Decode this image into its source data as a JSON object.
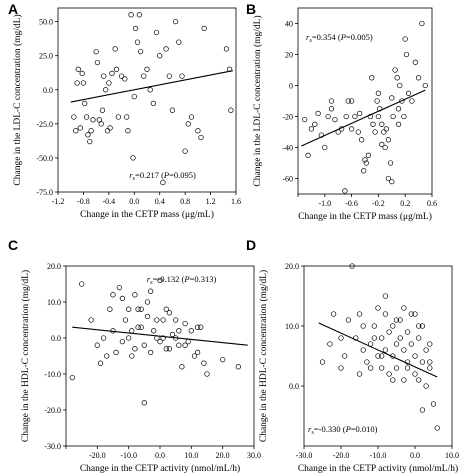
{
  "chart_data": [
    {
      "panel": "A",
      "type": "scatter",
      "xlabel": "Change in the CETP mass (μg/mL)",
      "ylabel": "Change in the LDL-C concentration (mg/dL)",
      "xlim": [
        -1.2,
        1.6
      ],
      "ylim": [
        -75,
        60
      ],
      "xticks": [
        -1.2,
        -0.8,
        -0.4,
        0.0,
        0.4,
        0.8,
        1.2,
        1.6
      ],
      "xtick_labels": [
        "-1.2",
        "-0.8",
        "-0.4",
        "0.0",
        "0.4",
        "0.8",
        "1.2",
        "1.6"
      ],
      "yticks": [
        -75,
        -50,
        -25,
        0,
        25,
        50
      ],
      "ytick_labels": [
        "-75.0",
        "-50.0",
        "-25.0",
        "0.0",
        "25.0",
        "50.0"
      ],
      "stat": {
        "prefix": "r",
        "subscript": "s",
        "text": "=0.217 (",
        "p_label": "P",
        "p_text": "=0.095)",
        "placement": "bottom-center"
      },
      "regression": {
        "x": [
          -1.0,
          1.55
        ],
        "y": [
          -9,
          14
        ]
      },
      "points": [
        [
          -0.95,
          -20
        ],
        [
          -0.92,
          -30
        ],
        [
          -0.9,
          5
        ],
        [
          -0.88,
          15
        ],
        [
          -0.85,
          -28
        ],
        [
          -0.82,
          12
        ],
        [
          -0.8,
          5
        ],
        [
          -0.78,
          -10
        ],
        [
          -0.75,
          -20
        ],
        [
          -0.73,
          -33
        ],
        [
          -0.7,
          -38
        ],
        [
          -0.68,
          -30
        ],
        [
          -0.65,
          -22
        ],
        [
          -0.6,
          28
        ],
        [
          -0.58,
          20
        ],
        [
          -0.55,
          -22
        ],
        [
          -0.52,
          -25
        ],
        [
          -0.5,
          -15
        ],
        [
          -0.48,
          10
        ],
        [
          -0.45,
          0
        ],
        [
          -0.42,
          -30
        ],
        [
          -0.4,
          5
        ],
        [
          -0.38,
          -28
        ],
        [
          -0.35,
          12
        ],
        [
          -0.3,
          30
        ],
        [
          -0.28,
          15
        ],
        [
          -0.25,
          -20
        ],
        [
          -0.2,
          10
        ],
        [
          -0.15,
          8
        ],
        [
          -0.12,
          -20
        ],
        [
          -0.1,
          -30
        ],
        [
          -0.05,
          55
        ],
        [
          -0.02,
          -50
        ],
        [
          0.0,
          -5
        ],
        [
          0.02,
          45
        ],
        [
          0.05,
          35
        ],
        [
          0.08,
          55
        ],
        [
          0.1,
          28
        ],
        [
          0.15,
          10
        ],
        [
          0.2,
          15
        ],
        [
          0.25,
          0
        ],
        [
          0.3,
          -10
        ],
        [
          0.35,
          42
        ],
        [
          0.4,
          25
        ],
        [
          0.5,
          30
        ],
        [
          0.55,
          10
        ],
        [
          0.6,
          -15
        ],
        [
          0.65,
          50
        ],
        [
          0.7,
          35
        ],
        [
          0.75,
          10
        ],
        [
          0.8,
          -45
        ],
        [
          0.85,
          -25
        ],
        [
          0.9,
          -20
        ],
        [
          1.0,
          -30
        ],
        [
          1.05,
          -35
        ],
        [
          1.1,
          45
        ],
        [
          1.45,
          30
        ],
        [
          1.5,
          15
        ],
        [
          1.52,
          -15
        ],
        [
          0.45,
          -68
        ]
      ]
    },
    {
      "panel": "B",
      "type": "scatter",
      "xlabel": "Change in the CETP mass (μg/mL)",
      "ylabel": "Change in the LDL-C concentration (mg/dL)",
      "xlim": [
        -1.4,
        0.6
      ],
      "ylim": [
        -70,
        50
      ],
      "xticks": [
        -1.4,
        -1.0,
        -0.6,
        -0.2,
        0.2,
        0.6
      ],
      "xtick_labels": [
        "",
        "-1.0",
        "-0.6",
        "-0.2",
        "0.2",
        "0.6"
      ],
      "yticks": [
        -60,
        -40,
        -20,
        0,
        20,
        40
      ],
      "ytick_labels": [
        "-60",
        "-40",
        "-20",
        "0",
        "20",
        "40"
      ],
      "stat": {
        "prefix": "r",
        "subscript": "s",
        "text": "=0.354 (",
        "p_label": "P",
        "p_text": "=0.005)",
        "placement": "top-left"
      },
      "regression": {
        "x": [
          -1.35,
          0.5
        ],
        "y": [
          -39,
          -3
        ]
      },
      "points": [
        [
          -1.3,
          -22
        ],
        [
          -1.25,
          -45
        ],
        [
          -1.2,
          -28
        ],
        [
          -1.15,
          -25
        ],
        [
          -1.1,
          -18
        ],
        [
          -1.05,
          -32
        ],
        [
          -1.0,
          -40
        ],
        [
          -0.95,
          -20
        ],
        [
          -0.9,
          -15
        ],
        [
          -0.85,
          -22
        ],
        [
          -0.8,
          -30
        ],
        [
          -0.75,
          -28
        ],
        [
          -0.7,
          -68
        ],
        [
          -0.68,
          -20
        ],
        [
          -0.65,
          -10
        ],
        [
          -0.6,
          -28
        ],
        [
          -0.55,
          -20
        ],
        [
          -0.5,
          -30
        ],
        [
          -0.48,
          -18
        ],
        [
          -0.45,
          -35
        ],
        [
          -0.42,
          -55
        ],
        [
          -0.4,
          -48
        ],
        [
          -0.38,
          -50
        ],
        [
          -0.35,
          -45
        ],
        [
          -0.32,
          -20
        ],
        [
          -0.3,
          5
        ],
        [
          -0.28,
          -25
        ],
        [
          -0.25,
          -30
        ],
        [
          -0.22,
          -10
        ],
        [
          -0.2,
          -5
        ],
        [
          -0.18,
          -15
        ],
        [
          -0.15,
          -25
        ],
        [
          -0.12,
          -30
        ],
        [
          -0.1,
          -40
        ],
        [
          -0.08,
          -28
        ],
        [
          -0.05,
          -35
        ],
        [
          -0.02,
          -50
        ],
        [
          0.0,
          -62
        ],
        [
          0.02,
          -20
        ],
        [
          0.05,
          10
        ],
        [
          0.08,
          5
        ],
        [
          0.1,
          -15
        ],
        [
          0.12,
          0
        ],
        [
          0.15,
          -10
        ],
        [
          0.18,
          -20
        ],
        [
          0.2,
          30
        ],
        [
          0.22,
          20
        ],
        [
          0.25,
          -5
        ],
        [
          0.3,
          -10
        ],
        [
          0.35,
          15
        ],
        [
          0.4,
          5
        ],
        [
          0.45,
          40
        ],
        [
          0.5,
          0
        ],
        [
          -0.6,
          -10
        ],
        [
          -0.9,
          -10
        ],
        [
          -0.2,
          -20
        ],
        [
          0.0,
          -8
        ],
        [
          0.1,
          -25
        ],
        [
          -0.15,
          -38
        ],
        [
          -0.05,
          -60
        ]
      ]
    },
    {
      "panel": "C",
      "type": "scatter",
      "xlabel": "Change in the CETP activity (nmol/mL/h)",
      "ylabel": "Change in the HDL-C concentration (mg/dL)",
      "xlim": [
        -30,
        30
      ],
      "ylim": [
        -30,
        20
      ],
      "xticks": [
        -30,
        -20,
        -10,
        0,
        10,
        20,
        30
      ],
      "xtick_labels": [
        "",
        "-20.0",
        "-10.0",
        "0.0",
        "10.0",
        "20.0",
        "30.0"
      ],
      "yticks": [
        -30,
        -20,
        -10,
        0,
        10,
        20
      ],
      "ytick_labels": [
        "-30.0",
        "-20.0",
        "-10.0",
        "0.0",
        "10.0",
        "20.0"
      ],
      "stat": {
        "prefix": "r",
        "subscript": "s",
        "text": "=-0.132 (",
        "p_label": "P",
        "p_text": "=0.313)",
        "placement": "top-right"
      },
      "regression": {
        "x": [
          -28,
          28
        ],
        "y": [
          3,
          -2
        ]
      },
      "points": [
        [
          -28,
          -11
        ],
        [
          -25,
          15
        ],
        [
          -22,
          5
        ],
        [
          -20,
          -2
        ],
        [
          -19,
          -7
        ],
        [
          -18,
          0
        ],
        [
          -16,
          8
        ],
        [
          -15,
          2
        ],
        [
          -14,
          -4
        ],
        [
          -13,
          14
        ],
        [
          -12,
          11
        ],
        [
          -11,
          5
        ],
        [
          -10,
          0
        ],
        [
          -9,
          -5
        ],
        [
          -8,
          12
        ],
        [
          -7,
          8
        ],
        [
          -6,
          3
        ],
        [
          -5,
          -2
        ],
        [
          -4,
          6
        ],
        [
          -3,
          13
        ],
        [
          -2,
          2
        ],
        [
          -1,
          0
        ],
        [
          0,
          -1
        ],
        [
          1,
          5
        ],
        [
          2,
          -3
        ],
        [
          3,
          7
        ],
        [
          4,
          1
        ],
        [
          5,
          0
        ],
        [
          6,
          -2
        ],
        [
          7,
          -8
        ],
        [
          8,
          4
        ],
        [
          9,
          -1
        ],
        [
          10,
          2
        ],
        [
          11,
          -5
        ],
        [
          12,
          -4
        ],
        [
          13,
          3
        ],
        [
          14,
          -7
        ],
        [
          15,
          -10
        ],
        [
          -5,
          -18
        ],
        [
          -10,
          8
        ],
        [
          -15,
          12
        ],
        [
          0,
          16
        ],
        [
          -7,
          3
        ],
        [
          -3,
          -4
        ],
        [
          2,
          8
        ],
        [
          5,
          5
        ],
        [
          -8,
          -3
        ],
        [
          -12,
          -1
        ],
        [
          20,
          -6
        ],
        [
          25,
          -8
        ],
        [
          -4,
          10
        ],
        [
          6,
          2
        ],
        [
          -6,
          8
        ],
        [
          3,
          -3
        ],
        [
          8,
          -2
        ],
        [
          -1,
          5
        ],
        [
          -17,
          -5
        ],
        [
          12,
          3
        ],
        [
          -9,
          2
        ],
        [
          1,
          0
        ]
      ]
    },
    {
      "panel": "D",
      "type": "scatter",
      "xlabel": "Change in the CETP activity (nmol/mL/h)",
      "ylabel": "Change in the HDL-C concentration (mg/dL)",
      "xlim": [
        -30,
        10
      ],
      "ylim": [
        -10,
        20
      ],
      "xticks": [
        -30,
        -20,
        -10,
        0,
        10
      ],
      "xtick_labels": [
        "-30.0",
        "-20.0",
        "-10.0",
        "0.0",
        "10.0"
      ],
      "yticks": [
        0,
        10,
        20
      ],
      "ytick_labels": [
        "0.0",
        "10.0",
        "20.0"
      ],
      "stat": {
        "prefix": "r",
        "subscript": "s",
        "text": "=-0.330 (",
        "p_label": "P",
        "p_text": "=0.010)",
        "placement": "bottom-left"
      },
      "regression": {
        "x": [
          -26,
          6
        ],
        "y": [
          10.5,
          1.5
        ]
      },
      "points": [
        [
          -25,
          4
        ],
        [
          -23,
          7
        ],
        [
          -22,
          12
        ],
        [
          -20,
          8
        ],
        [
          -19,
          5
        ],
        [
          -18,
          11
        ],
        [
          -17,
          20
        ],
        [
          -16,
          8
        ],
        [
          -15,
          12
        ],
        [
          -14,
          6
        ],
        [
          -13,
          4
        ],
        [
          -12,
          7
        ],
        [
          -11,
          10
        ],
        [
          -10,
          5
        ],
        [
          -10,
          13
        ],
        [
          -9,
          3
        ],
        [
          -9,
          8
        ],
        [
          -8,
          6
        ],
        [
          -8,
          12
        ],
        [
          -7,
          9
        ],
        [
          -7,
          2
        ],
        [
          -6,
          5
        ],
        [
          -6,
          10
        ],
        [
          -5,
          7
        ],
        [
          -5,
          3
        ],
        [
          -4,
          8
        ],
        [
          -4,
          11
        ],
        [
          -3,
          6
        ],
        [
          -3,
          1
        ],
        [
          -2,
          9
        ],
        [
          -2,
          4
        ],
        [
          -1,
          7
        ],
        [
          -1,
          12
        ],
        [
          0,
          5
        ],
        [
          0,
          2
        ],
        [
          1,
          8
        ],
        [
          1,
          10
        ],
        [
          2,
          4
        ],
        [
          2,
          -4
        ],
        [
          3,
          6
        ],
        [
          3,
          0
        ],
        [
          4,
          3
        ],
        [
          4,
          7
        ],
        [
          5,
          -3
        ],
        [
          6,
          -7
        ],
        [
          -12,
          3
        ],
        [
          -15,
          2
        ],
        [
          -20,
          3
        ],
        [
          -8,
          15
        ],
        [
          -3,
          13
        ],
        [
          -14,
          10
        ],
        [
          -6,
          1
        ],
        [
          0,
          12
        ],
        [
          2,
          10
        ],
        [
          -11,
          8
        ],
        [
          -5,
          11
        ],
        [
          -2,
          3
        ],
        [
          -9,
          5
        ],
        [
          1,
          1
        ],
        [
          4,
          4
        ]
      ]
    }
  ]
}
